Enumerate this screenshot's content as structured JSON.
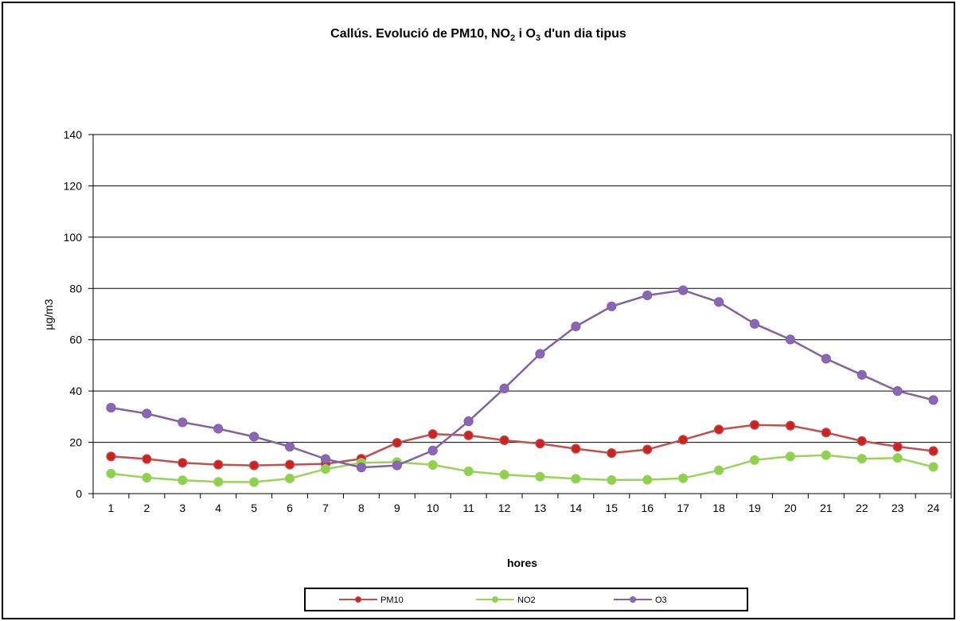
{
  "chart_data": {
    "type": "line",
    "title": {
      "prefix": "Callús. Evolució de PM10, NO",
      "sub1": "2",
      "middle": " i O",
      "sub2": "3",
      "suffix": "  d'un dia tipus"
    },
    "xlabel": "hores",
    "ylabel": "µg/m3",
    "ylim": [
      0,
      140
    ],
    "yticks": [
      0,
      20,
      40,
      60,
      80,
      100,
      120,
      140
    ],
    "grid": true,
    "legend_position": "bottom",
    "categories": [
      "1",
      "2",
      "3",
      "4",
      "5",
      "6",
      "7",
      "8",
      "9",
      "10",
      "11",
      "12",
      "13",
      "14",
      "15",
      "16",
      "17",
      "18",
      "19",
      "20",
      "21",
      "22",
      "23",
      "24"
    ],
    "series": [
      {
        "name": "PM10",
        "color": "#c0504d",
        "marker_fill": "#cc2222",
        "values": [
          14.5,
          13.5,
          12,
          11.3,
          11,
          11.3,
          11.6,
          13.6,
          19.8,
          23.2,
          22.7,
          20.8,
          19.5,
          17.5,
          15.8,
          17.2,
          21,
          25,
          26.8,
          26.5,
          23.8,
          20.5,
          18.3,
          16.6
        ]
      },
      {
        "name": "NO2",
        "color": "#9bd35a",
        "marker_fill": "#8fd14f",
        "values": [
          7.8,
          6.2,
          5.2,
          4.6,
          4.5,
          5.9,
          9.6,
          12,
          12.3,
          11.2,
          8.7,
          7.4,
          6.6,
          5.8,
          5.3,
          5.4,
          6,
          9.1,
          13.1,
          14.5,
          15,
          13.6,
          13.9,
          10.4
        ]
      },
      {
        "name": "O3",
        "color": "#8064a2",
        "marker_fill": "#8a66b8",
        "values": [
          33.5,
          31.2,
          27.8,
          25.3,
          22.2,
          18.3,
          13.5,
          10.2,
          11,
          16.8,
          28.2,
          41,
          54.5,
          65.2,
          73,
          77.3,
          79.3,
          74.7,
          66.2,
          60.1,
          52.6,
          46.3,
          40,
          36.5
        ]
      }
    ]
  }
}
